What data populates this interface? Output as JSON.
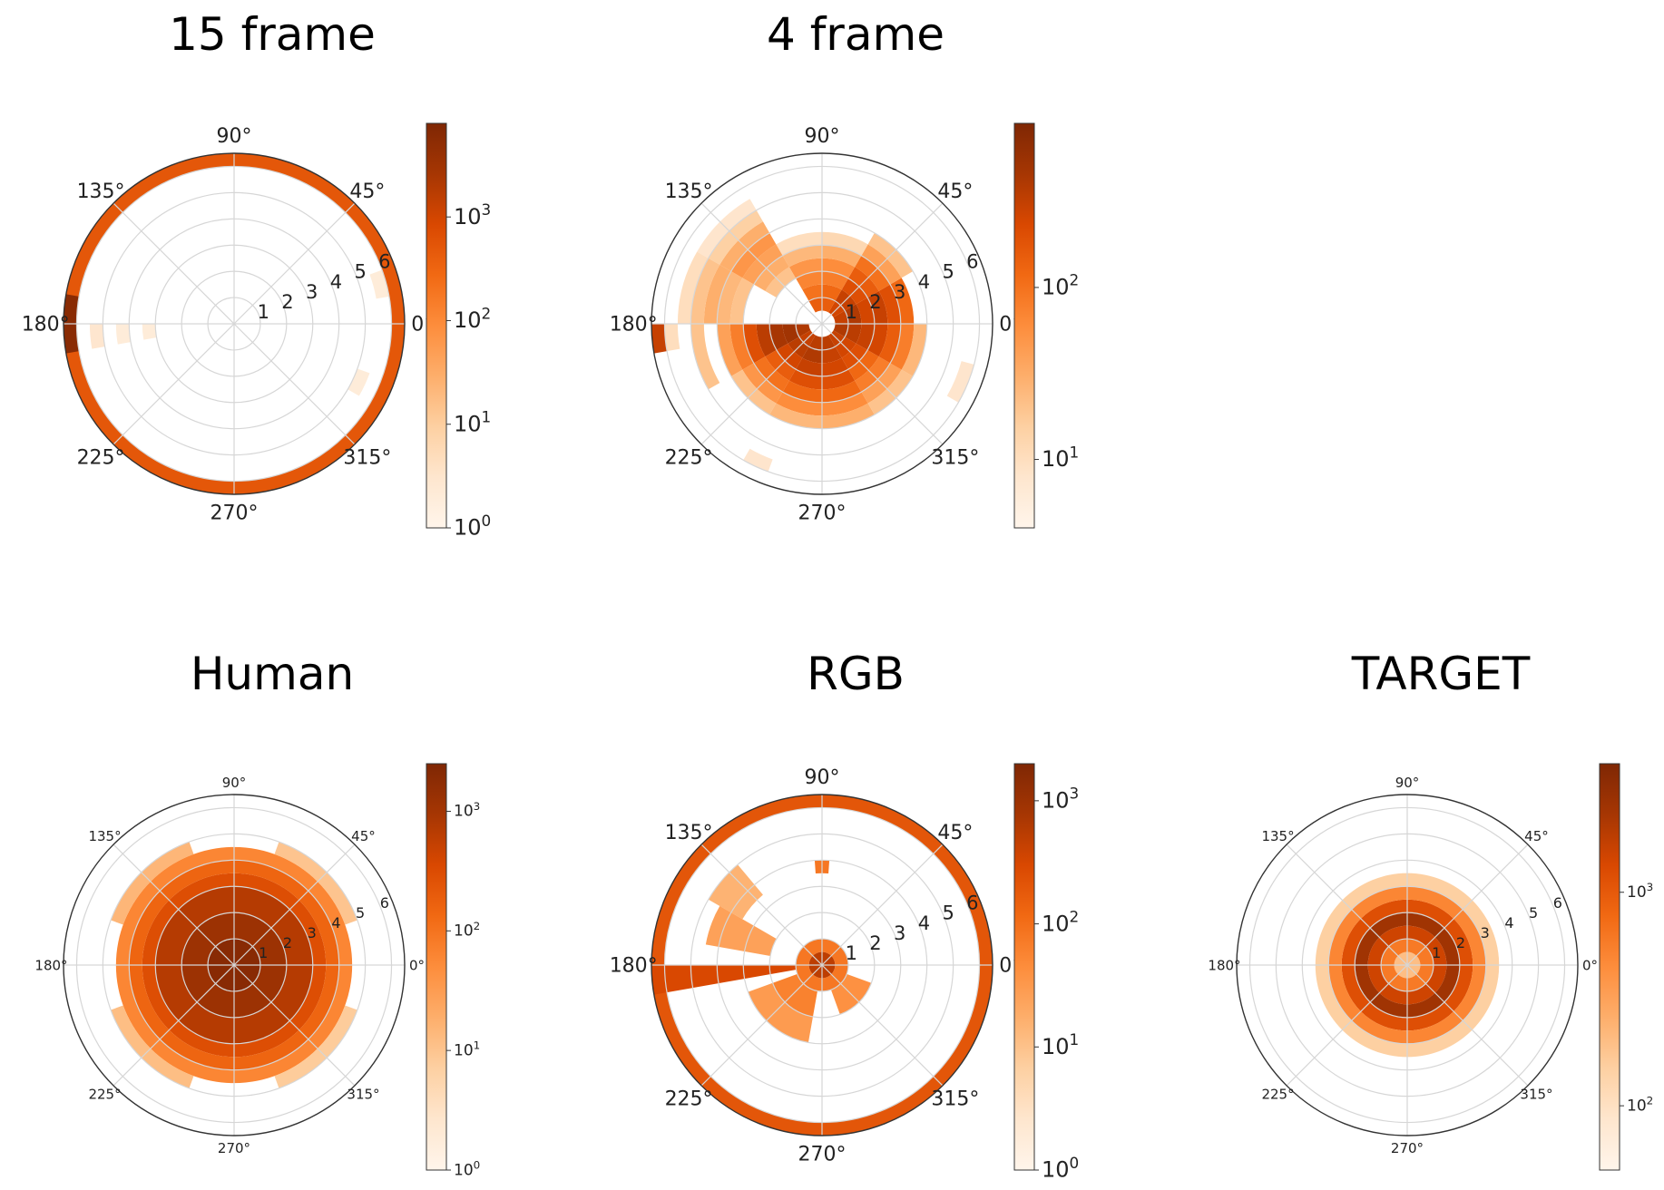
{
  "colormap": {
    "name": "Oranges",
    "stops": [
      "#fff5eb",
      "#fee6ce",
      "#fdd0a2",
      "#fdae6b",
      "#fd8d3c",
      "#f16913",
      "#d94801",
      "#a63603",
      "#7f2704"
    ]
  },
  "chart_data": [
    {
      "type": "heatmap",
      "subtype": "polar-histogram",
      "title": "15 frame",
      "angle_ticks": [
        "0°",
        "45°",
        "90°",
        "135°",
        "180°",
        "225°",
        "270°",
        "315°"
      ],
      "radial_ticks": [
        "1",
        "2",
        "3",
        "4",
        "5",
        "6"
      ],
      "rmax": 6.5,
      "colorbar": {
        "scale": "log",
        "min": 1,
        "max": 8000,
        "ticks": [
          "10^0",
          "10^1",
          "10^2",
          "10^3"
        ],
        "tick_values": [
          1,
          10,
          100,
          1000
        ]
      },
      "cells": [
        {
          "a0": 0,
          "a1": 360,
          "r0": 6.0,
          "r1": 6.5,
          "v": 500
        },
        {
          "a0": 170,
          "a1": 190,
          "r0": 6.0,
          "r1": 6.5,
          "v": 6000
        },
        {
          "a0": 180,
          "a1": 190,
          "r0": 5.0,
          "r1": 5.5,
          "v": 3
        },
        {
          "a0": 180,
          "a1": 190,
          "r0": 4.0,
          "r1": 4.5,
          "v": 2
        },
        {
          "a0": 180,
          "a1": 190,
          "r0": 3.0,
          "r1": 3.5,
          "v": 2
        },
        {
          "a0": 10,
          "a1": 20,
          "r0": 5.5,
          "r1": 6.0,
          "v": 2
        },
        {
          "a0": 330,
          "a1": 340,
          "r0": 5.0,
          "r1": 5.5,
          "v": 2
        }
      ]
    },
    {
      "type": "heatmap",
      "subtype": "polar-histogram",
      "title": "4 frame",
      "angle_ticks": [
        "0°",
        "45°",
        "90°",
        "135°",
        "180°",
        "225°",
        "270°",
        "315°"
      ],
      "radial_ticks": [
        "1",
        "2",
        "3",
        "4",
        "5",
        "6"
      ],
      "rmax": 6.5,
      "colorbar": {
        "scale": "log",
        "min": 4,
        "max": 900,
        "ticks": [
          "10^1",
          "10^2"
        ],
        "tick_values": [
          10,
          100
        ]
      },
      "cells": [
        {
          "a0": 0,
          "a1": 30,
          "r0": 0.5,
          "r1": 1.0,
          "v": 300
        },
        {
          "a0": 0,
          "a1": 30,
          "r0": 1.0,
          "r1": 1.5,
          "v": 400
        },
        {
          "a0": 0,
          "a1": 30,
          "r0": 1.5,
          "r1": 2.0,
          "v": 250
        },
        {
          "a0": 0,
          "a1": 30,
          "r0": 2.0,
          "r1": 2.5,
          "v": 300
        },
        {
          "a0": 0,
          "a1": 30,
          "r0": 2.5,
          "r1": 3.0,
          "v": 200
        },
        {
          "a0": 0,
          "a1": 30,
          "r0": 3.0,
          "r1": 3.5,
          "v": 120
        },
        {
          "a0": 30,
          "a1": 60,
          "r0": 0.5,
          "r1": 1.0,
          "v": 250
        },
        {
          "a0": 30,
          "a1": 60,
          "r0": 1.0,
          "r1": 1.5,
          "v": 300
        },
        {
          "a0": 30,
          "a1": 60,
          "r0": 1.5,
          "r1": 2.0,
          "v": 200
        },
        {
          "a0": 30,
          "a1": 60,
          "r0": 2.0,
          "r1": 2.5,
          "v": 150
        },
        {
          "a0": 30,
          "a1": 60,
          "r0": 2.5,
          "r1": 3.0,
          "v": 100
        },
        {
          "a0": 30,
          "a1": 60,
          "r0": 3.0,
          "r1": 3.5,
          "v": 40
        },
        {
          "a0": 30,
          "a1": 60,
          "r0": 3.5,
          "r1": 4.0,
          "v": 20
        },
        {
          "a0": 60,
          "a1": 90,
          "r0": 0.5,
          "r1": 1.0,
          "v": 150
        },
        {
          "a0": 60,
          "a1": 90,
          "r0": 1.0,
          "r1": 1.5,
          "v": 120
        },
        {
          "a0": 60,
          "a1": 90,
          "r0": 1.5,
          "r1": 2.0,
          "v": 80
        },
        {
          "a0": 60,
          "a1": 90,
          "r0": 2.0,
          "r1": 2.5,
          "v": 60
        },
        {
          "a0": 60,
          "a1": 90,
          "r0": 2.5,
          "r1": 3.0,
          "v": 30
        },
        {
          "a0": 60,
          "a1": 90,
          "r0": 3.0,
          "r1": 3.5,
          "v": 12
        },
        {
          "a0": 90,
          "a1": 120,
          "r0": 0.5,
          "r1": 1.0,
          "v": 150
        },
        {
          "a0": 90,
          "a1": 120,
          "r0": 1.0,
          "r1": 1.5,
          "v": 100
        },
        {
          "a0": 90,
          "a1": 120,
          "r0": 1.5,
          "r1": 2.0,
          "v": 70
        },
        {
          "a0": 90,
          "a1": 120,
          "r0": 2.0,
          "r1": 2.5,
          "v": 50
        },
        {
          "a0": 90,
          "a1": 120,
          "r0": 2.5,
          "r1": 3.0,
          "v": 25
        },
        {
          "a0": 90,
          "a1": 120,
          "r0": 3.0,
          "r1": 3.5,
          "v": 10
        },
        {
          "a0": 120,
          "a1": 150,
          "r0": 2.0,
          "r1": 2.5,
          "v": 20
        },
        {
          "a0": 120,
          "a1": 150,
          "r0": 2.5,
          "r1": 3.0,
          "v": 30
        },
        {
          "a0": 120,
          "a1": 150,
          "r0": 3.0,
          "r1": 3.5,
          "v": 40
        },
        {
          "a0": 120,
          "a1": 150,
          "r0": 3.5,
          "r1": 4.0,
          "v": 50
        },
        {
          "a0": 120,
          "a1": 150,
          "r0": 4.0,
          "r1": 4.5,
          "v": 30
        },
        {
          "a0": 120,
          "a1": 150,
          "r0": 4.5,
          "r1": 5.0,
          "v": 15
        },
        {
          "a0": 120,
          "a1": 150,
          "r0": 5.0,
          "r1": 5.5,
          "v": 8
        },
        {
          "a0": 150,
          "a1": 180,
          "r0": 3.0,
          "r1": 3.5,
          "v": 20
        },
        {
          "a0": 150,
          "a1": 180,
          "r0": 3.5,
          "r1": 4.0,
          "v": 25
        },
        {
          "a0": 150,
          "a1": 180,
          "r0": 4.0,
          "r1": 4.5,
          "v": 30
        },
        {
          "a0": 150,
          "a1": 180,
          "r0": 4.5,
          "r1": 5.0,
          "v": 20
        },
        {
          "a0": 150,
          "a1": 180,
          "r0": 5.0,
          "r1": 5.5,
          "v": 10
        },
        {
          "a0": 180,
          "a1": 210,
          "r0": 0.5,
          "r1": 1.0,
          "v": 400
        },
        {
          "a0": 180,
          "a1": 210,
          "r0": 1.0,
          "r1": 1.5,
          "v": 500
        },
        {
          "a0": 180,
          "a1": 210,
          "r0": 1.5,
          "r1": 2.0,
          "v": 450
        },
        {
          "a0": 180,
          "a1": 210,
          "r0": 2.0,
          "r1": 2.5,
          "v": 350
        },
        {
          "a0": 180,
          "a1": 210,
          "r0": 2.5,
          "r1": 3.0,
          "v": 200
        },
        {
          "a0": 180,
          "a1": 210,
          "r0": 3.0,
          "r1": 3.5,
          "v": 80
        },
        {
          "a0": 180,
          "a1": 210,
          "r0": 3.5,
          "r1": 4.0,
          "v": 40
        },
        {
          "a0": 180,
          "a1": 210,
          "r0": 4.5,
          "r1": 5.0,
          "v": 20
        },
        {
          "a0": 180,
          "a1": 190,
          "r0": 5.5,
          "r1": 6.0,
          "v": 10
        },
        {
          "a0": 180,
          "a1": 190,
          "r0": 6.0,
          "r1": 6.5,
          "v": 300
        },
        {
          "a0": 210,
          "a1": 240,
          "r0": 0.5,
          "r1": 1.0,
          "v": 300
        },
        {
          "a0": 210,
          "a1": 240,
          "r0": 1.0,
          "r1": 1.5,
          "v": 350
        },
        {
          "a0": 210,
          "a1": 240,
          "r0": 1.5,
          "r1": 2.0,
          "v": 250
        },
        {
          "a0": 210,
          "a1": 240,
          "r0": 2.0,
          "r1": 2.5,
          "v": 150
        },
        {
          "a0": 210,
          "a1": 240,
          "r0": 2.5,
          "r1": 3.0,
          "v": 100
        },
        {
          "a0": 210,
          "a1": 240,
          "r0": 3.0,
          "r1": 3.5,
          "v": 50
        },
        {
          "a0": 210,
          "a1": 240,
          "r0": 3.5,
          "r1": 4.0,
          "v": 20
        },
        {
          "a0": 240,
          "a1": 270,
          "r0": 0.5,
          "r1": 1.0,
          "v": 350
        },
        {
          "a0": 240,
          "a1": 270,
          "r0": 1.0,
          "r1": 1.5,
          "v": 400
        },
        {
          "a0": 240,
          "a1": 270,
          "r0": 1.5,
          "r1": 2.0,
          "v": 300
        },
        {
          "a0": 240,
          "a1": 270,
          "r0": 2.0,
          "r1": 2.5,
          "v": 200
        },
        {
          "a0": 240,
          "a1": 270,
          "r0": 2.5,
          "r1": 3.0,
          "v": 120
        },
        {
          "a0": 240,
          "a1": 270,
          "r0": 3.0,
          "r1": 3.5,
          "v": 60
        },
        {
          "a0": 240,
          "a1": 270,
          "r0": 3.5,
          "r1": 4.0,
          "v": 25
        },
        {
          "a0": 270,
          "a1": 300,
          "r0": 0.5,
          "r1": 1.0,
          "v": 350
        },
        {
          "a0": 270,
          "a1": 300,
          "r0": 1.0,
          "r1": 1.5,
          "v": 300
        },
        {
          "a0": 270,
          "a1": 300,
          "r0": 1.5,
          "r1": 2.0,
          "v": 250
        },
        {
          "a0": 270,
          "a1": 300,
          "r0": 2.0,
          "r1": 2.5,
          "v": 200
        },
        {
          "a0": 270,
          "a1": 300,
          "r0": 2.5,
          "r1": 3.0,
          "v": 120
        },
        {
          "a0": 270,
          "a1": 300,
          "r0": 3.0,
          "r1": 3.5,
          "v": 60
        },
        {
          "a0": 270,
          "a1": 300,
          "r0": 3.5,
          "r1": 4.0,
          "v": 30
        },
        {
          "a0": 300,
          "a1": 330,
          "r0": 0.5,
          "r1": 1.0,
          "v": 300
        },
        {
          "a0": 300,
          "a1": 330,
          "r0": 1.0,
          "r1": 1.5,
          "v": 250
        },
        {
          "a0": 300,
          "a1": 330,
          "r0": 1.5,
          "r1": 2.0,
          "v": 200
        },
        {
          "a0": 300,
          "a1": 330,
          "r0": 2.0,
          "r1": 2.5,
          "v": 120
        },
        {
          "a0": 300,
          "a1": 330,
          "r0": 2.5,
          "r1": 3.0,
          "v": 80
        },
        {
          "a0": 300,
          "a1": 330,
          "r0": 3.0,
          "r1": 3.5,
          "v": 40
        },
        {
          "a0": 300,
          "a1": 330,
          "r0": 3.5,
          "r1": 4.0,
          "v": 20
        },
        {
          "a0": 330,
          "a1": 360,
          "r0": 0.5,
          "r1": 1.0,
          "v": 400
        },
        {
          "a0": 330,
          "a1": 360,
          "r0": 1.0,
          "r1": 1.5,
          "v": 350
        },
        {
          "a0": 330,
          "a1": 360,
          "r0": 1.5,
          "r1": 2.0,
          "v": 300
        },
        {
          "a0": 330,
          "a1": 360,
          "r0": 2.0,
          "r1": 2.5,
          "v": 250
        },
        {
          "a0": 330,
          "a1": 360,
          "r0": 2.5,
          "r1": 3.0,
          "v": 150
        },
        {
          "a0": 330,
          "a1": 360,
          "r0": 3.0,
          "r1": 3.5,
          "v": 80
        },
        {
          "a0": 330,
          "a1": 360,
          "r0": 3.5,
          "r1": 4.0,
          "v": 25
        },
        {
          "a0": 330,
          "a1": 345,
          "r0": 5.5,
          "r1": 6.0,
          "v": 8
        },
        {
          "a0": 240,
          "a1": 250,
          "r0": 5.5,
          "r1": 6.0,
          "v": 8
        }
      ]
    },
    {
      "type": "heatmap",
      "subtype": "polar-histogram",
      "title": "Human",
      "angle_ticks": [
        "0°",
        "45°",
        "90°",
        "135°",
        "180°",
        "225°",
        "270°",
        "315°"
      ],
      "radial_ticks": [
        "1",
        "2",
        "3",
        "4",
        "5",
        "6"
      ],
      "rmax": 6.5,
      "colorbar": {
        "scale": "log",
        "min": 1,
        "max": 2500,
        "ticks": [
          "10^0",
          "10^1",
          "10^2",
          "10^3"
        ],
        "tick_values": [
          1,
          10,
          100,
          1000
        ]
      },
      "cells": [
        {
          "a0": 0,
          "a1": 360,
          "r0": 0.0,
          "r1": 1.0,
          "v": 2000
        },
        {
          "a0": 0,
          "a1": 360,
          "r0": 1.0,
          "r1": 2.0,
          "v": 1200
        },
        {
          "a0": 0,
          "a1": 360,
          "r0": 2.0,
          "r1": 3.0,
          "v": 700
        },
        {
          "a0": 0,
          "a1": 360,
          "r0": 3.0,
          "r1": 3.5,
          "v": 300
        },
        {
          "a0": 0,
          "a1": 360,
          "r0": 3.5,
          "r1": 4.0,
          "v": 150
        },
        {
          "a0": 0,
          "a1": 360,
          "r0": 4.0,
          "r1": 4.5,
          "v": 60
        },
        {
          "a0": 20,
          "a1": 70,
          "r0": 4.5,
          "r1": 5.0,
          "v": 10
        },
        {
          "a0": 110,
          "a1": 160,
          "r0": 4.5,
          "r1": 5.0,
          "v": 15
        },
        {
          "a0": 200,
          "a1": 250,
          "r0": 4.5,
          "r1": 5.0,
          "v": 12
        },
        {
          "a0": 290,
          "a1": 340,
          "r0": 4.5,
          "r1": 5.0,
          "v": 8
        }
      ]
    },
    {
      "type": "heatmap",
      "subtype": "polar-histogram",
      "title": "RGB",
      "angle_ticks": [
        "0°",
        "45°",
        "90°",
        "135°",
        "180°",
        "225°",
        "270°",
        "315°"
      ],
      "radial_ticks": [
        "1",
        "2",
        "3",
        "4",
        "5",
        "6"
      ],
      "rmax": 6.5,
      "colorbar": {
        "scale": "log",
        "min": 1,
        "max": 2000,
        "ticks": [
          "10^0",
          "10^1",
          "10^2",
          "10^3"
        ],
        "tick_values": [
          1,
          10,
          100,
          1000
        ]
      },
      "cells": [
        {
          "a0": 0,
          "a1": 360,
          "r0": 6.0,
          "r1": 6.5,
          "v": 200
        },
        {
          "a0": 180,
          "a1": 190,
          "r0": 0.5,
          "r1": 6.5,
          "v": 300
        },
        {
          "a0": 0,
          "a1": 360,
          "r0": 0.0,
          "r1": 0.5,
          "v": 500
        },
        {
          "a0": 0,
          "a1": 360,
          "r0": 0.5,
          "r1": 1.0,
          "v": 80
        },
        {
          "a0": 200,
          "a1": 260,
          "r0": 1.0,
          "r1": 2.0,
          "v": 60
        },
        {
          "a0": 200,
          "a1": 260,
          "r0": 2.0,
          "r1": 3.0,
          "v": 30
        },
        {
          "a0": 150,
          "a1": 170,
          "r0": 2.0,
          "r1": 4.5,
          "v": 25
        },
        {
          "a0": 130,
          "a1": 150,
          "r0": 3.5,
          "r1": 5.0,
          "v": 15
        },
        {
          "a0": 86,
          "a1": 94,
          "r0": 3.5,
          "r1": 4.0,
          "v": 80
        },
        {
          "a0": 290,
          "a1": 340,
          "r0": 1.0,
          "r1": 2.0,
          "v": 40
        }
      ]
    },
    {
      "type": "heatmap",
      "subtype": "polar-histogram",
      "title": "TARGET",
      "angle_ticks": [
        "0°",
        "45°",
        "90°",
        "135°",
        "180°",
        "225°",
        "270°",
        "315°"
      ],
      "radial_ticks": [
        "1",
        "2",
        "3",
        "4",
        "5",
        "6"
      ],
      "rmax": 6.5,
      "colorbar": {
        "scale": "log",
        "min": 50,
        "max": 4000,
        "ticks": [
          "10^2",
          "10^3"
        ],
        "tick_values": [
          100,
          1000
        ]
      },
      "cells": [
        {
          "a0": 0,
          "a1": 360,
          "r0": 0.0,
          "r1": 0.5,
          "v": 200
        },
        {
          "a0": 0,
          "a1": 360,
          "r0": 0.5,
          "r1": 1.0,
          "v": 600
        },
        {
          "a0": 0,
          "a1": 360,
          "r0": 1.0,
          "r1": 1.5,
          "v": 1500
        },
        {
          "a0": 0,
          "a1": 360,
          "r0": 1.5,
          "r1": 2.0,
          "v": 2500
        },
        {
          "a0": 0,
          "a1": 360,
          "r0": 2.0,
          "r1": 2.5,
          "v": 1200
        },
        {
          "a0": 0,
          "a1": 360,
          "r0": 2.5,
          "r1": 3.0,
          "v": 500
        },
        {
          "a0": 0,
          "a1": 360,
          "r0": 3.0,
          "r1": 3.5,
          "v": 150
        }
      ]
    }
  ]
}
